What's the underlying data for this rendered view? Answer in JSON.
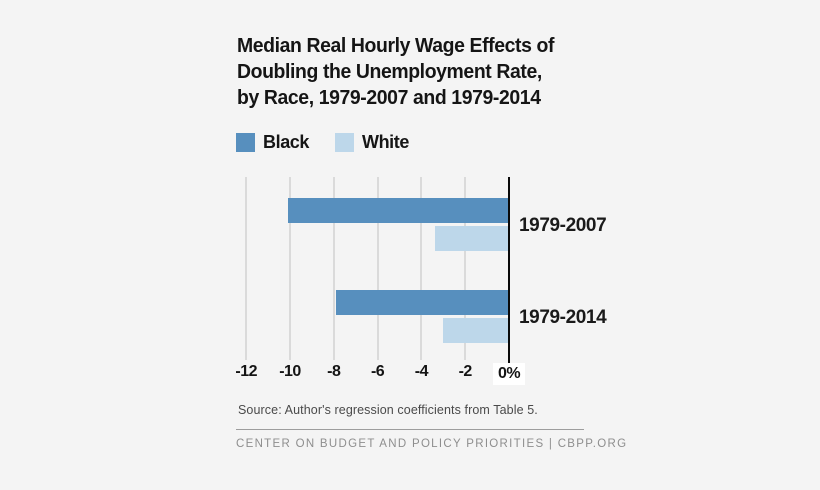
{
  "page": {
    "background_color": "#f4f4f4"
  },
  "title": {
    "lines": [
      "Median Real Hourly Wage Effects of",
      "Doubling the Unemployment Rate,",
      "by Race, 1979-2007 and 1979-2014"
    ]
  },
  "legend": {
    "items": [
      {
        "label": "Black",
        "color": "#578fbe"
      },
      {
        "label": "White",
        "color": "#bdd7ea"
      }
    ]
  },
  "chart_data": {
    "type": "bar",
    "orientation": "horizontal",
    "title": "Median Real Hourly Wage Effects of Doubling the Unemployment Rate, by Race, 1979-2007 and 1979-2014",
    "categories": [
      "1979-2007",
      "1979-2014"
    ],
    "series": [
      {
        "name": "Black",
        "color": "#578fbe",
        "values": [
          -10.1,
          -7.9
        ]
      },
      {
        "name": "White",
        "color": "#bdd7ea",
        "values": [
          -3.4,
          -3.0
        ]
      }
    ],
    "value_unit": "percent",
    "xlim": [
      -13,
      0
    ],
    "x_ticks": [
      {
        "value": -12,
        "label": "-12"
      },
      {
        "value": -10,
        "label": "-10"
      },
      {
        "value": -8,
        "label": "-8"
      },
      {
        "value": -6,
        "label": "-6"
      },
      {
        "value": -4,
        "label": "-4"
      },
      {
        "value": -2,
        "label": "-2"
      },
      {
        "value": 0,
        "label": "0%"
      }
    ],
    "grid": true,
    "gridline_color": "#dadada",
    "zero_axis_color": "#0a0a0a",
    "legend_position": "top",
    "xlabel": "",
    "ylabel": ""
  },
  "source": {
    "text": "Source: Author's regression coefficients from Table 5."
  },
  "footer": {
    "text": "CENTER ON BUDGET AND POLICY PRIORITIES | CBPP.ORG"
  }
}
